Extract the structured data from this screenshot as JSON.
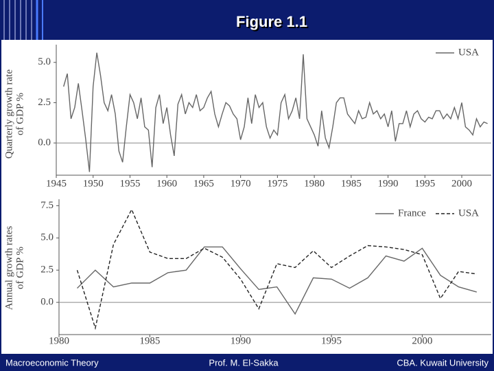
{
  "slide": {
    "title": "Figure 1.1",
    "footer": [
      "Macroeconomic Theory",
      "Prof. M. El-Sakka",
      "CBA. Kuwait University"
    ]
  },
  "chart_data": [
    {
      "type": "line",
      "ylabel": [
        "Quarterly growth rate",
        "of GDP %"
      ],
      "x": [
        1946,
        1946.5,
        1947,
        1947.5,
        1948,
        1948.5,
        1949,
        1949.5,
        1950,
        1950.5,
        1951,
        1951.5,
        1952,
        1952.5,
        1953,
        1953.5,
        1954,
        1954.5,
        1955,
        1955.5,
        1956,
        1956.5,
        1957,
        1957.5,
        1958,
        1958.5,
        1959,
        1959.5,
        1960,
        1960.5,
        1961,
        1961.5,
        1962,
        1962.5,
        1963,
        1963.5,
        1964,
        1964.5,
        1965,
        1965.5,
        1966,
        1966.5,
        1967,
        1967.5,
        1968,
        1968.5,
        1969,
        1969.5,
        1970,
        1970.5,
        1971,
        1971.5,
        1972,
        1972.5,
        1973,
        1973.5,
        1974,
        1974.5,
        1975,
        1975.5,
        1976,
        1976.5,
        1977,
        1977.5,
        1978,
        1978.5,
        1979,
        1979.5,
        1980,
        1980.5,
        1981,
        1981.5,
        1982,
        1982.5,
        1983,
        1983.5,
        1984,
        1984.5,
        1985,
        1985.5,
        1986,
        1986.5,
        1987,
        1987.5,
        1988,
        1988.5,
        1989,
        1989.5,
        1990,
        1990.5,
        1991,
        1991.5,
        1992,
        1992.5,
        1993,
        1993.5,
        1994,
        1994.5,
        1995,
        1995.5,
        1996,
        1996.5,
        1997,
        1997.5,
        1998,
        1998.5,
        1999,
        1999.5,
        2000,
        2000.5,
        2001,
        2001.5,
        2002,
        2002.5,
        2003,
        2003.5
      ],
      "xlim": [
        1945,
        2004
      ],
      "xticks": [
        1945,
        1950,
        1955,
        1960,
        1965,
        1970,
        1975,
        1980,
        1985,
        1990,
        1995,
        2000
      ],
      "ylim": [
        -2,
        6.1
      ],
      "yticks": [
        {
          "value": 0,
          "label": "0.0"
        },
        {
          "value": 2.5,
          "label": "2.5"
        },
        {
          "value": 5,
          "label": "5.0"
        }
      ],
      "zero_line": true,
      "legend": "upper right",
      "series": [
        {
          "name": "USA",
          "color": "#666666",
          "dashed": false,
          "values": [
            3.5,
            4.3,
            1.5,
            2.2,
            3.7,
            2.0,
            0.2,
            -1.8,
            3.5,
            5.6,
            4.2,
            2.5,
            2.0,
            3.0,
            1.8,
            -0.5,
            -1.2,
            1.0,
            3.0,
            2.5,
            1.5,
            2.8,
            1.0,
            0.8,
            -1.5,
            2.2,
            3.0,
            1.2,
            2.2,
            0.5,
            -0.8,
            2.4,
            3.0,
            1.8,
            2.5,
            2.2,
            3.0,
            2.0,
            2.2,
            2.8,
            3.2,
            1.8,
            1.0,
            1.8,
            2.5,
            2.3,
            1.8,
            1.5,
            0.2,
            1.0,
            2.8,
            1.2,
            3.0,
            2.2,
            2.5,
            1.0,
            0.3,
            0.8,
            0.5,
            2.5,
            3.0,
            1.5,
            2.0,
            2.8,
            1.5,
            5.5,
            1.5,
            1.0,
            0.5,
            -0.2,
            2.0,
            0.3,
            -0.3,
            1.0,
            2.5,
            2.8,
            2.8,
            1.8,
            1.5,
            1.2,
            2.0,
            1.5,
            1.6,
            2.5,
            1.8,
            2.0,
            1.5,
            1.8,
            1.0,
            2.0,
            0.1,
            1.2,
            1.2,
            2.0,
            1.0,
            1.8,
            2.0,
            1.5,
            1.3,
            1.6,
            1.5,
            2.0,
            2.0,
            1.5,
            1.8,
            1.5,
            2.2,
            1.5,
            2.5,
            1.0,
            0.8,
            0.5,
            1.5,
            1.0,
            1.3,
            1.2
          ]
        }
      ]
    },
    {
      "type": "line",
      "ylabel": [
        "Annual growth rates",
        "of GDP %"
      ],
      "x": [
        1981,
        1982,
        1983,
        1984,
        1985,
        1986,
        1987,
        1988,
        1989,
        1990,
        1991,
        1992,
        1993,
        1994,
        1995,
        1996,
        1997,
        1998,
        1999,
        2000,
        2001,
        2002,
        2003
      ],
      "xlim": [
        1980,
        2003.8
      ],
      "xticks": [
        1980,
        1985,
        1990,
        1995,
        2000
      ],
      "ylim": [
        -2.5,
        8
      ],
      "yticks": [
        {
          "value": 0,
          "label": "0.0"
        },
        {
          "value": 2.5,
          "label": "2.5"
        },
        {
          "value": 5,
          "label": "5.0"
        },
        {
          "value": 7.5,
          "label": "7.5"
        }
      ],
      "zero_line": true,
      "legend": "upper right",
      "series": [
        {
          "name": "France",
          "color": "#666666",
          "dashed": false,
          "values": [
            1.1,
            2.5,
            1.2,
            1.5,
            1.5,
            2.3,
            2.5,
            4.3,
            4.3,
            2.6,
            1.0,
            1.2,
            -0.9,
            1.9,
            1.8,
            1.1,
            1.9,
            3.6,
            3.2,
            4.2,
            2.1,
            1.2,
            0.8
          ]
        },
        {
          "name": "USA",
          "color": "#222222",
          "dashed": true,
          "values": [
            2.5,
            -2.0,
            4.5,
            7.2,
            3.9,
            3.4,
            3.4,
            4.2,
            3.5,
            1.8,
            -0.5,
            3.0,
            2.7,
            4.0,
            2.7,
            3.6,
            4.4,
            4.3,
            4.1,
            3.7,
            0.3,
            2.4,
            2.2
          ]
        }
      ]
    }
  ]
}
